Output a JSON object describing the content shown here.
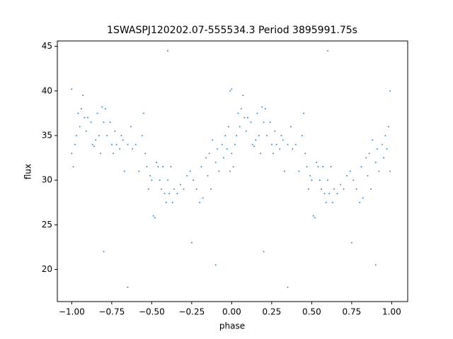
{
  "chart_data": {
    "type": "scatter",
    "title": "1SWASPJ120202.07-555534.3 Period 3895991.75s",
    "xlabel": "phase",
    "ylabel": "flux",
    "color": "#1f77b4",
    "xlim": [
      -1.09,
      1.1
    ],
    "ylim": [
      16.4,
      45.6
    ],
    "xticks": [
      {
        "value": -1,
        "label": "−1.00"
      },
      {
        "value": -0.75,
        "label": "−0.75"
      },
      {
        "value": -0.5,
        "label": "−0.50"
      },
      {
        "value": -0.25,
        "label": "−0.25"
      },
      {
        "value": 0,
        "label": "0.00"
      },
      {
        "value": 0.25,
        "label": "0.25"
      },
      {
        "value": 0.5,
        "label": "0.50"
      },
      {
        "value": 0.75,
        "label": "0.75"
      },
      {
        "value": 1,
        "label": "1.00"
      }
    ],
    "yticks": [
      20,
      25,
      30,
      35,
      40,
      45
    ],
    "x": [
      -1,
      -1,
      -0.99,
      -0.98,
      -0.97,
      -0.96,
      -0.95,
      -0.94,
      -0.93,
      -0.92,
      -0.91,
      -0.9,
      -0.88,
      -0.87,
      -0.86,
      -0.85,
      -0.84,
      -0.83,
      -0.82,
      -0.81,
      -0.8,
      -0.79,
      -0.78,
      -0.76,
      -0.75,
      -0.74,
      -0.73,
      -0.72,
      -0.7,
      -0.69,
      -0.68,
      -0.67,
      -0.65,
      -0.63,
      -0.62,
      -0.6,
      -0.58,
      -0.56,
      -0.55,
      -0.54,
      -0.53,
      -0.52,
      -0.51,
      -0.5,
      -0.49,
      -0.48,
      -0.47,
      -0.46,
      -0.45,
      -0.44,
      -0.43,
      -0.42,
      -0.41,
      -0.4,
      -0.39,
      -0.38,
      -0.37,
      -0.36,
      -0.34,
      -0.32,
      -0.3,
      -0.28,
      -0.26,
      -0.24,
      -0.22,
      -0.2,
      -0.19,
      -0.18,
      -0.16,
      -0.15,
      -0.14,
      -0.13,
      -0.12,
      -0.1,
      -0.09,
      -0.08,
      -0.06,
      -0.05,
      -0.04,
      -0.03,
      -0.02,
      -0.01,
      -0.01,
      -0.8,
      -0.4,
      -0.1,
      -0.65,
      -0.25,
      0,
      0,
      0.01,
      0.02,
      0.03,
      0.04,
      0.05,
      0.06,
      0.07,
      0.08,
      0.09,
      0.1,
      0.12,
      0.13,
      0.14,
      0.15,
      0.16,
      0.17,
      0.18,
      0.19,
      0.2,
      0.21,
      0.22,
      0.24,
      0.25,
      0.26,
      0.27,
      0.28,
      0.3,
      0.31,
      0.32,
      0.33,
      0.35,
      0.37,
      0.38,
      0.4,
      0.42,
      0.44,
      0.45,
      0.46,
      0.47,
      0.48,
      0.49,
      0.5,
      0.51,
      0.52,
      0.53,
      0.54,
      0.55,
      0.56,
      0.57,
      0.58,
      0.59,
      0.6,
      0.61,
      0.62,
      0.63,
      0.64,
      0.66,
      0.68,
      0.7,
      0.72,
      0.74,
      0.76,
      0.78,
      0.8,
      0.81,
      0.82,
      0.84,
      0.85,
      0.86,
      0.87,
      0.88,
      0.9,
      0.91,
      0.92,
      0.94,
      0.95,
      0.96,
      0.97,
      0.98,
      0.99,
      0.99,
      0.2,
      0.6,
      0.9,
      0.35,
      0.75
    ],
    "values": [
      40.2,
      33,
      31.5,
      34,
      35,
      37.5,
      36,
      38,
      39.5,
      37,
      35.5,
      37,
      36.5,
      34,
      33.8,
      34.5,
      37.5,
      35,
      33,
      38.2,
      36.5,
      38,
      35,
      36.5,
      34,
      33,
      35.5,
      34,
      33.5,
      35,
      34.5,
      31,
      34,
      36,
      33.5,
      34,
      31,
      35,
      37.5,
      33,
      31.5,
      29,
      30.5,
      30,
      26,
      25.8,
      32,
      31.5,
      30,
      29,
      31.5,
      28.5,
      27.5,
      30,
      28.5,
      31.5,
      27.5,
      29,
      28.5,
      29.5,
      29,
      30.5,
      31,
      30,
      29,
      27.5,
      31.5,
      28,
      32.5,
      30.5,
      33,
      29,
      34.5,
      32,
      33.5,
      31,
      34,
      32.5,
      35,
      33.5,
      36,
      40,
      31,
      22,
      44.5,
      20.5,
      18,
      23,
      40.2,
      33,
      31.5,
      34,
      35,
      37.5,
      36,
      38,
      39.5,
      37,
      35.5,
      37,
      36.5,
      34,
      33.8,
      34.5,
      37.5,
      35,
      33,
      38.2,
      36.5,
      38,
      35,
      36.5,
      34,
      33,
      35.5,
      34,
      33.5,
      35,
      34.5,
      31,
      34,
      36,
      33.5,
      34,
      31,
      35,
      37.5,
      33,
      31.5,
      29,
      30.5,
      30,
      26,
      25.8,
      32,
      31.5,
      30,
      29,
      31.5,
      28.5,
      27.5,
      30,
      28.5,
      31.5,
      27.5,
      29,
      28.5,
      29.5,
      29,
      30.5,
      31,
      30,
      29,
      27.5,
      31.5,
      28,
      32.5,
      30.5,
      33,
      29,
      34.5,
      32,
      33.5,
      31,
      34,
      32.5,
      35,
      33.5,
      36,
      40,
      31,
      22,
      44.5,
      20.5,
      18,
      23
    ]
  }
}
